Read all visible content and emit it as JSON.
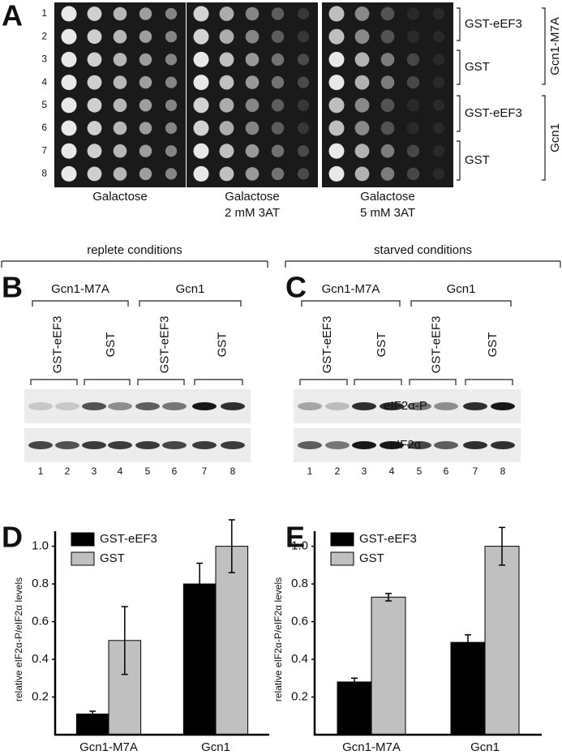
{
  "figure": {
    "panel_a": {
      "label": "A",
      "rows": [
        "1",
        "2",
        "3",
        "4",
        "5",
        "6",
        "7",
        "8"
      ],
      "plates": [
        [
          "Galactose"
        ],
        [
          "Galactose",
          "2 mM 3AT"
        ],
        [
          "Galactose",
          "5 mM 3AT"
        ]
      ],
      "groups": [
        "GST-eEF3",
        "GST",
        "GST-eEF3",
        "GST"
      ],
      "strains": [
        "Gcn1-M7A",
        "Gcn1"
      ]
    },
    "conditions": [
      "replete conditions",
      "starved conditions"
    ],
    "blots": [
      {
        "label": "B",
        "strains": [
          "Gcn1-M7A",
          "Gcn1"
        ],
        "groups": [
          "GST-eEF3",
          "GST",
          "GST-eEF3",
          "GST"
        ],
        "lanes": [
          "1",
          "2",
          "3",
          "4",
          "5",
          "6",
          "7",
          "8"
        ]
      },
      {
        "label": "C",
        "strains": [
          "Gcn1-M7A",
          "Gcn1"
        ],
        "groups": [
          "GST-eEF3",
          "GST",
          "GST-eEF3",
          "GST"
        ],
        "lanes": [
          "1",
          "2",
          "3",
          "4",
          "5",
          "6",
          "7",
          "8"
        ]
      }
    ],
    "blot_rows": [
      "eIF2α-P",
      "eIF2α"
    ],
    "chart_labels": [
      "D",
      "E"
    ]
  },
  "chart_data": [
    {
      "type": "bar",
      "y_label": "relative eIF2α-P/eIF2α levels",
      "categories": [
        "Gcn1-M7A",
        "Gcn1"
      ],
      "series": [
        {
          "name": "GST-eEF3",
          "color": "#000000",
          "values": [
            0.11,
            0.8
          ],
          "errors": [
            0.015,
            0.11
          ]
        },
        {
          "name": "GST",
          "color": "#c0c0c0",
          "values": [
            0.5,
            1.0
          ],
          "errors": [
            0.18,
            0.14
          ]
        }
      ],
      "ylim": [
        0,
        1.08
      ],
      "yticks": [
        0.2,
        0.4,
        0.6,
        0.8,
        {
          "value": 1,
          "label": "1.0"
        }
      ],
      "legend": "upper-left"
    },
    {
      "type": "bar",
      "y_label": "relative eIF2α-P/eIF2α levels",
      "categories": [
        "Gcn1-M7A",
        "Gcn1"
      ],
      "series": [
        {
          "name": "GST-eEF3",
          "color": "#000000",
          "values": [
            0.28,
            0.49
          ],
          "errors": [
            0.02,
            0.04
          ]
        },
        {
          "name": "GST",
          "color": "#c0c0c0",
          "values": [
            0.73,
            1.0
          ],
          "errors": [
            0.02,
            0.1
          ]
        }
      ],
      "ylim": [
        0,
        1.08
      ],
      "yticks": [
        0.2,
        0.4,
        0.6,
        0.8,
        {
          "value": 1,
          "label": "1.0"
        }
      ],
      "legend": "upper-left"
    }
  ]
}
